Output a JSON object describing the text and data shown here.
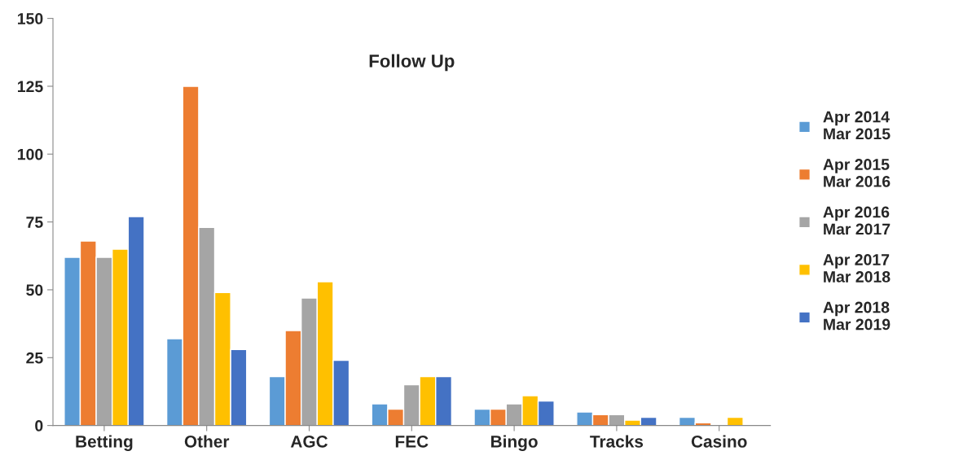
{
  "chart_data": {
    "type": "bar",
    "title": "Follow Up",
    "categories": [
      "Betting",
      "Other",
      "AGC",
      "FEC",
      "Bingo",
      "Tracks",
      "Casino"
    ],
    "series": [
      {
        "name": "Apr 2014\nMar 2015",
        "color": "#5b9bd5",
        "values": [
          62,
          32,
          18,
          8,
          6,
          5,
          3
        ]
      },
      {
        "name": "Apr 2015\nMar 2016",
        "color": "#ed7d31",
        "values": [
          68,
          125,
          35,
          6,
          6,
          4,
          1
        ]
      },
      {
        "name": "Apr 2016\nMar 2017",
        "color": "#a5a5a5",
        "values": [
          62,
          73,
          47,
          15,
          8,
          4,
          null
        ]
      },
      {
        "name": "Apr 2017\nMar 2018",
        "color": "#ffc000",
        "values": [
          65,
          49,
          53,
          18,
          11,
          2,
          3
        ]
      },
      {
        "name": "Apr 2018\nMar 2019",
        "color": "#4472c4",
        "values": [
          77,
          28,
          24,
          18,
          9,
          3,
          null
        ]
      }
    ],
    "ylim": [
      0,
      150
    ],
    "yticks": [
      0,
      25,
      50,
      75,
      100,
      125,
      150
    ],
    "grid": false,
    "legend": "right"
  }
}
